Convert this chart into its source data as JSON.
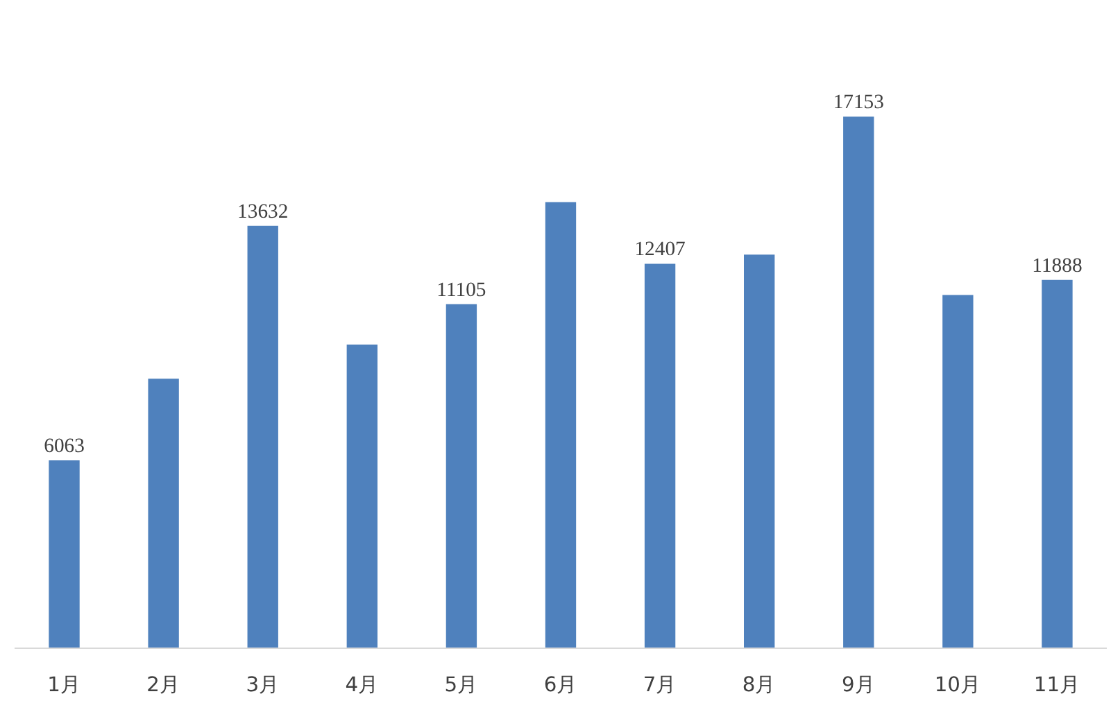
{
  "chart_data": {
    "type": "bar",
    "categories": [
      "1月",
      "2月",
      "3月",
      "4月",
      "5月",
      "6月",
      "7月",
      "8月",
      "9月",
      "10月",
      "11月"
    ],
    "values": [
      6063,
      8700,
      13632,
      9800,
      11105,
      14400,
      12407,
      12700,
      17153,
      11400,
      11888
    ],
    "value_labels": [
      "6063",
      null,
      "13632",
      null,
      "11105",
      null,
      "12407",
      null,
      "17153",
      null,
      "11888"
    ],
    "color": "#4f81bd"
  }
}
